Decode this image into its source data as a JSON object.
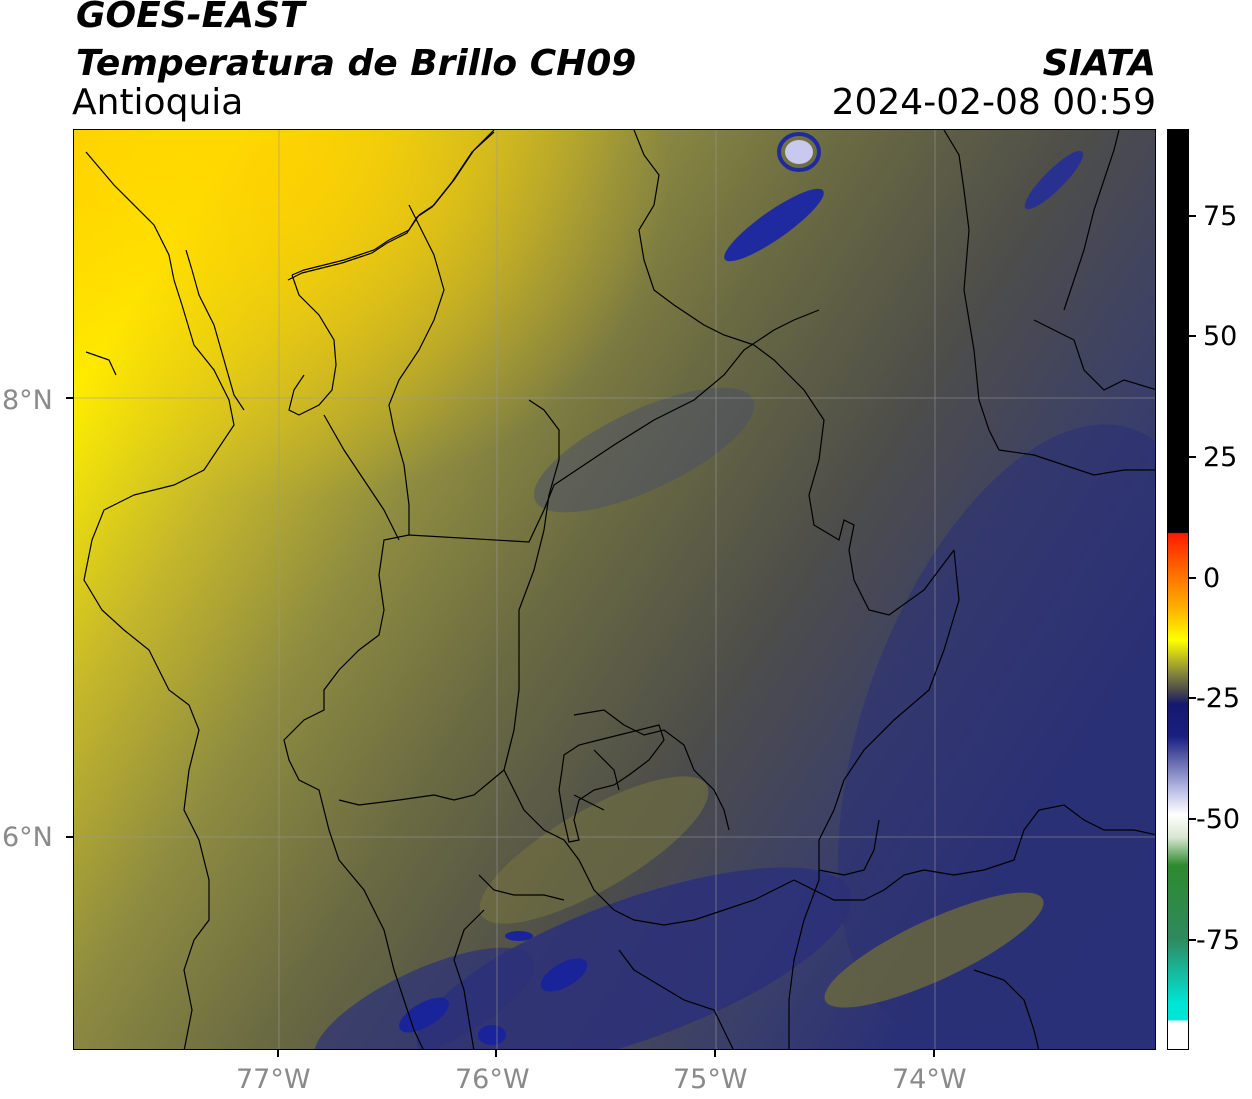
{
  "header": {
    "satellite": "GOES-EAST",
    "product": "Temperatura de Brillo CH09",
    "region": "Antioquia",
    "org": "SIATA",
    "datetime": "2024-02-08 00:59"
  },
  "map": {
    "lon_range": [
      -77.95,
      -73.0
    ],
    "lat_range": [
      5.0,
      9.2
    ],
    "lon_ticks": [
      {
        "value": -77,
        "label": "77°W"
      },
      {
        "value": -76,
        "label": "76°W"
      },
      {
        "value": -75,
        "label": "75°W"
      },
      {
        "value": -74,
        "label": "74°W"
      }
    ],
    "lat_ticks": [
      {
        "value": 8,
        "label": "8°N"
      },
      {
        "value": 6,
        "label": "6°N"
      }
    ],
    "gridlines": true
  },
  "colorbar": {
    "range": [
      -95,
      92
    ],
    "ticks": [
      {
        "value": 75,
        "label": "75"
      },
      {
        "value": 50,
        "label": "50"
      },
      {
        "value": 25,
        "label": "25"
      },
      {
        "value": 0,
        "label": "0"
      },
      {
        "value": -25,
        "label": "-25"
      },
      {
        "value": -50,
        "label": "-50"
      },
      {
        "value": -75,
        "label": "-75"
      }
    ],
    "colors": {
      "black": "#000000",
      "red": "#ff1a00",
      "orange": "#ff9900",
      "yellow": "#ffff00",
      "olive": "#8a8a3a",
      "gray": "#4a4a4a",
      "navy": "#1a1f80",
      "light": "#ffffff",
      "green": "#2e8a2e",
      "cyan": "#00e5d5"
    }
  }
}
